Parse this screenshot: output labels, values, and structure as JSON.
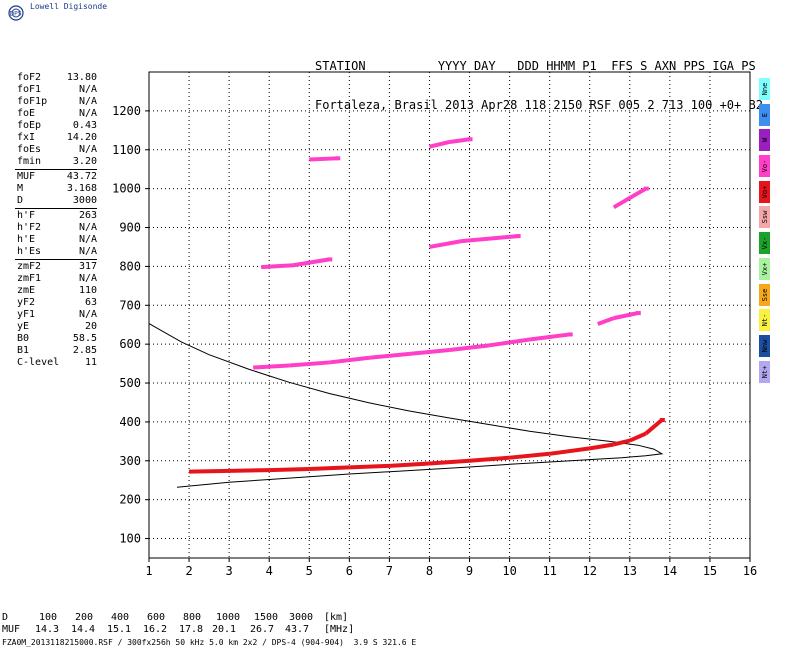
{
  "header": {
    "logo_text": "Lowell Digisonde",
    "logo_mark": "DPS",
    "labels_line": "STATION          YYYY DAY   DDD HHMM P1  FFS S AXN PPS IGA PS",
    "values_line": "Fortaleza, Brasil 2013 Apr28 118 2150 RSF 005 2 713 100 +0+ B2"
  },
  "params": [
    {
      "label": "foF2",
      "value": "13.80"
    },
    {
      "label": "foF1",
      "value": "N/A"
    },
    {
      "label": "foF1p",
      "value": "N/A"
    },
    {
      "label": "foE",
      "value": "N/A"
    },
    {
      "label": "foEp",
      "value": "0.43"
    },
    {
      "label": "fxI",
      "value": "14.20"
    },
    {
      "label": "foEs",
      "value": "N/A"
    },
    {
      "label": "fmin",
      "value": "3.20"
    },
    {
      "sep": true
    },
    {
      "label": "MUF",
      "value": "43.72"
    },
    {
      "label": "M",
      "value": "3.168"
    },
    {
      "label": "D",
      "value": "3000"
    },
    {
      "sep": true
    },
    {
      "label": "h'F",
      "value": "263"
    },
    {
      "label": "h'F2",
      "value": "N/A"
    },
    {
      "label": "h'E",
      "value": "N/A"
    },
    {
      "label": "h'Es",
      "value": "N/A"
    },
    {
      "sep": true
    },
    {
      "label": "zmF2",
      "value": "317"
    },
    {
      "label": "zmF1",
      "value": "N/A"
    },
    {
      "label": "zmE",
      "value": "110"
    },
    {
      "label": "yF2",
      "value": "63"
    },
    {
      "label": "yF1",
      "value": "N/A"
    },
    {
      "label": "yE",
      "value": "20"
    },
    {
      "label": "B0",
      "value": "58.5"
    },
    {
      "label": "B1",
      "value": "2.85"
    },
    {
      "label": "C-level",
      "value": "11"
    }
  ],
  "legend": [
    {
      "label": "Nne",
      "color": "#7fffff"
    },
    {
      "label": "E",
      "color": "#3d8ef0"
    },
    {
      "label": "W",
      "color": "#9b1fc0"
    },
    {
      "label": "Vo-",
      "color": "#ff3fc8"
    },
    {
      "label": "Vo+",
      "color": "#e8141c"
    },
    {
      "label": "Ssw",
      "color": "#f4a6a8"
    },
    {
      "label": "Vx-",
      "color": "#1aa32a"
    },
    {
      "label": "Vx+",
      "color": "#a8f2a0"
    },
    {
      "label": "Sse",
      "color": "#f7a818"
    },
    {
      "label": "Nt-",
      "color": "#f9f240"
    },
    {
      "label": "Nnw",
      "color": "#1d4fa0"
    },
    {
      "label": "Nt+",
      "color": "#b2a8f0"
    }
  ],
  "muf_table": {
    "d_label": "D",
    "d_values": [
      "100",
      "200",
      "400",
      "600",
      "800",
      "1000",
      "1500",
      "3000"
    ],
    "d_unit": "[km]",
    "muf_label": "MUF",
    "muf_values": [
      "14.3",
      "14.4",
      "15.1",
      "16.2",
      "17.8",
      "20.1",
      "26.7",
      "43.7"
    ],
    "muf_unit": "[MHz]"
  },
  "footer": "FZA0M_2013118215000.RSF / 300fx256h 50 kHz 5.0 km 2x2 / DPS-4 (904-904)  3.9 S 321.6 E",
  "chart_data": {
    "type": "scatter",
    "title": "",
    "xlabel": "",
    "ylabel": "",
    "xlim": [
      1,
      16
    ],
    "ylim": [
      50,
      1300
    ],
    "x_ticks": [
      1,
      2,
      3,
      4,
      5,
      6,
      7,
      8,
      9,
      10,
      11,
      12,
      13,
      14,
      15,
      16
    ],
    "y_ticks": [
      100,
      200,
      300,
      400,
      500,
      600,
      700,
      800,
      900,
      1000,
      1100,
      1200
    ],
    "grid": "dotted",
    "legend": "right",
    "series": [
      {
        "type": "line",
        "points": [
          [
            1.7,
            232
          ],
          [
            3,
            245
          ],
          [
            4,
            252
          ],
          [
            5,
            259
          ],
          [
            6,
            266
          ],
          [
            7,
            272
          ],
          [
            8,
            278
          ],
          [
            9,
            284
          ],
          [
            10,
            291
          ],
          [
            11,
            297
          ],
          [
            12,
            303
          ],
          [
            12.8,
            308
          ],
          [
            13.4,
            313
          ],
          [
            13.8,
            318
          ],
          [
            13.6,
            330
          ],
          [
            13.2,
            340
          ],
          [
            12.5,
            350
          ],
          [
            11.5,
            362
          ],
          [
            10.5,
            376
          ],
          [
            9.5,
            393
          ],
          [
            8.5,
            410
          ],
          [
            7.5,
            428
          ],
          [
            6.5,
            449
          ],
          [
            5.5,
            473
          ],
          [
            4.5,
            502
          ],
          [
            3.5,
            535
          ],
          [
            2.5,
            573
          ],
          [
            1.8,
            606
          ],
          [
            1,
            653
          ]
        ]
      },
      {
        "type": "trace",
        "color": "#e8141c",
        "points": [
          [
            2,
            272
          ],
          [
            3,
            274
          ],
          [
            4,
            276
          ],
          [
            5,
            279
          ],
          [
            6,
            283
          ],
          [
            7,
            287
          ],
          [
            8,
            293
          ],
          [
            9,
            300
          ],
          [
            10,
            308
          ],
          [
            11,
            318
          ],
          [
            12,
            332
          ],
          [
            12.6,
            342
          ],
          [
            13,
            352
          ],
          [
            13.4,
            370
          ],
          [
            13.8,
            405
          ]
        ]
      },
      {
        "type": "trace",
        "color": "#ff3fc8",
        "points": [
          [
            3.6,
            540
          ],
          [
            4.5,
            545
          ],
          [
            5.5,
            553
          ],
          [
            6.5,
            565
          ],
          [
            7.5,
            575
          ],
          [
            8.5,
            585
          ],
          [
            9.5,
            597
          ],
          [
            10.5,
            612
          ],
          [
            11.5,
            625
          ]
        ]
      },
      {
        "type": "trace",
        "color": "#ff3fc8",
        "points": [
          [
            3.8,
            798
          ],
          [
            4.6,
            803
          ],
          [
            5.5,
            818
          ],
          [
            8,
            850
          ],
          [
            8.8,
            865
          ],
          [
            10.2,
            878
          ],
          [
            12.2,
            652
          ],
          [
            12.6,
            667
          ],
          [
            13.2,
            680
          ]
        ]
      },
      {
        "type": "trace",
        "color": "#ff3fc8",
        "points": [
          [
            5,
            1075
          ],
          [
            5.7,
            1078
          ],
          [
            8,
            1108
          ],
          [
            8.5,
            1120
          ],
          [
            9,
            1127
          ],
          [
            12.6,
            952
          ],
          [
            13.4,
            1000
          ]
        ]
      }
    ]
  }
}
